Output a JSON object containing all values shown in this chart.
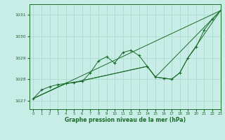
{
  "title": "Graphe pression niveau de la mer (hPa)",
  "bg_color": "#c8ece6",
  "grid_color": "#a8d8cc",
  "line_color": "#1a6b2a",
  "xlim": [
    -0.5,
    23
  ],
  "ylim": [
    1026.6,
    1031.5
  ],
  "xticks": [
    0,
    1,
    2,
    3,
    4,
    5,
    6,
    7,
    8,
    9,
    10,
    11,
    12,
    13,
    14,
    15,
    16,
    17,
    18,
    19,
    20,
    21,
    22,
    23
  ],
  "yticks": [
    1027,
    1028,
    1029,
    1030,
    1031
  ],
  "series_main": {
    "x": [
      0,
      1,
      2,
      3,
      4,
      5,
      6,
      7,
      8,
      9,
      10,
      11,
      12,
      13,
      14,
      15,
      16,
      17,
      18,
      19,
      20,
      21,
      22,
      23
    ],
    "y": [
      1027.1,
      1027.5,
      1027.65,
      1027.75,
      1027.8,
      1027.85,
      1027.9,
      1028.3,
      1028.85,
      1029.05,
      1028.75,
      1029.25,
      1029.35,
      1029.1,
      1028.6,
      1028.1,
      1028.05,
      1028.0,
      1028.3,
      1029.0,
      1029.5,
      1030.3,
      1030.8,
      1031.2
    ]
  },
  "series_line1": {
    "x": [
      0,
      23
    ],
    "y": [
      1027.1,
      1031.2
    ]
  },
  "series_line2": {
    "x": [
      0,
      4,
      5,
      14,
      15,
      23
    ],
    "y": [
      1027.1,
      1027.8,
      1027.85,
      1028.6,
      1028.1,
      1031.2
    ]
  },
  "series_line3": {
    "x": [
      0,
      4,
      5,
      14,
      15,
      16,
      17,
      18,
      19,
      23
    ],
    "y": [
      1027.1,
      1027.8,
      1027.85,
      1028.6,
      1028.1,
      1028.05,
      1028.0,
      1028.3,
      1029.0,
      1031.2
    ]
  }
}
